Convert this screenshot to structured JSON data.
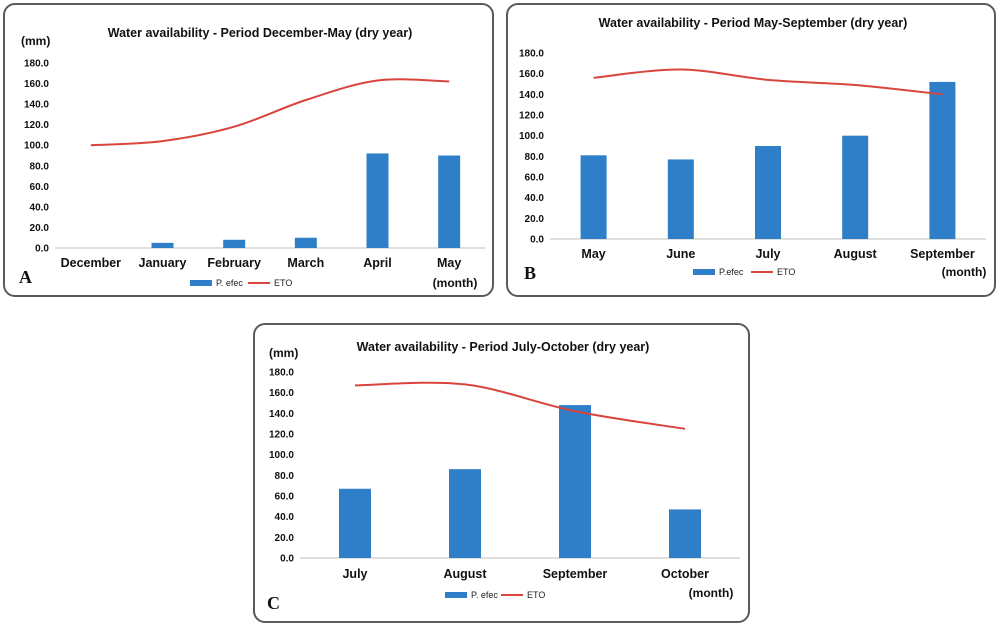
{
  "panels": [
    {
      "id": "A",
      "letter": "A"
    },
    {
      "id": "B",
      "letter": "B"
    },
    {
      "id": "C",
      "letter": "C"
    }
  ],
  "colors": {
    "bar": "#2f7fc8",
    "line": "#d9453d",
    "axis": "#bfbfbf"
  },
  "chart_data": [
    {
      "type": "bar",
      "title": "Water availability - Period December-May (dry year)",
      "ylabel": "(mm)",
      "xlabel": "(month)",
      "ylim": [
        0,
        180
      ],
      "ytick_labels": [
        "0.0",
        "20.0",
        "40.0",
        "60.0",
        "80.0",
        "100.0",
        "120.0",
        "140.0",
        "160.0",
        "180.0"
      ],
      "categories": [
        "December",
        "January",
        "February",
        "March",
        "April",
        "May"
      ],
      "series": [
        {
          "name": "P. efec",
          "kind": "bar",
          "values": [
            0,
            5,
            8,
            10,
            92,
            90
          ]
        },
        {
          "name": "ETO",
          "kind": "line",
          "values": [
            100,
            104,
            118,
            144,
            163,
            162
          ]
        }
      ],
      "legend": "bottom-center",
      "grid": false
    },
    {
      "type": "bar",
      "title": "Water availability - Period May-September (dry year)",
      "ylabel": "",
      "xlabel": "(month)",
      "ylim": [
        0,
        180
      ],
      "ytick_labels": [
        "0.0",
        "20.0",
        "40.0",
        "60.0",
        "80.0",
        "100.0",
        "120.0",
        "140.0",
        "160.0",
        "180.0"
      ],
      "categories": [
        "May",
        "June",
        "July",
        "August",
        "September"
      ],
      "series": [
        {
          "name": "P.efec",
          "kind": "bar",
          "values": [
            81,
            77,
            90,
            100,
            152
          ]
        },
        {
          "name": "ETO",
          "kind": "line",
          "values": [
            156,
            164,
            154,
            149,
            140
          ]
        }
      ],
      "legend": "bottom-center",
      "grid": false
    },
    {
      "type": "bar",
      "title": "Water availability - Period July-October (dry year)",
      "ylabel": "(mm)",
      "xlabel": "(month)",
      "ylim": [
        0,
        180
      ],
      "ytick_labels": [
        "0.0",
        "20.0",
        "40.0",
        "60.0",
        "80.0",
        "100.0",
        "120.0",
        "140.0",
        "160.0",
        "180.0"
      ],
      "categories": [
        "July",
        "August",
        "September",
        "October"
      ],
      "series": [
        {
          "name": "P. efec",
          "kind": "bar",
          "values": [
            67,
            86,
            148,
            47
          ]
        },
        {
          "name": "ETO",
          "kind": "line",
          "values": [
            167,
            168,
            142,
            125
          ]
        }
      ],
      "legend": "bottom-center",
      "grid": false
    }
  ]
}
